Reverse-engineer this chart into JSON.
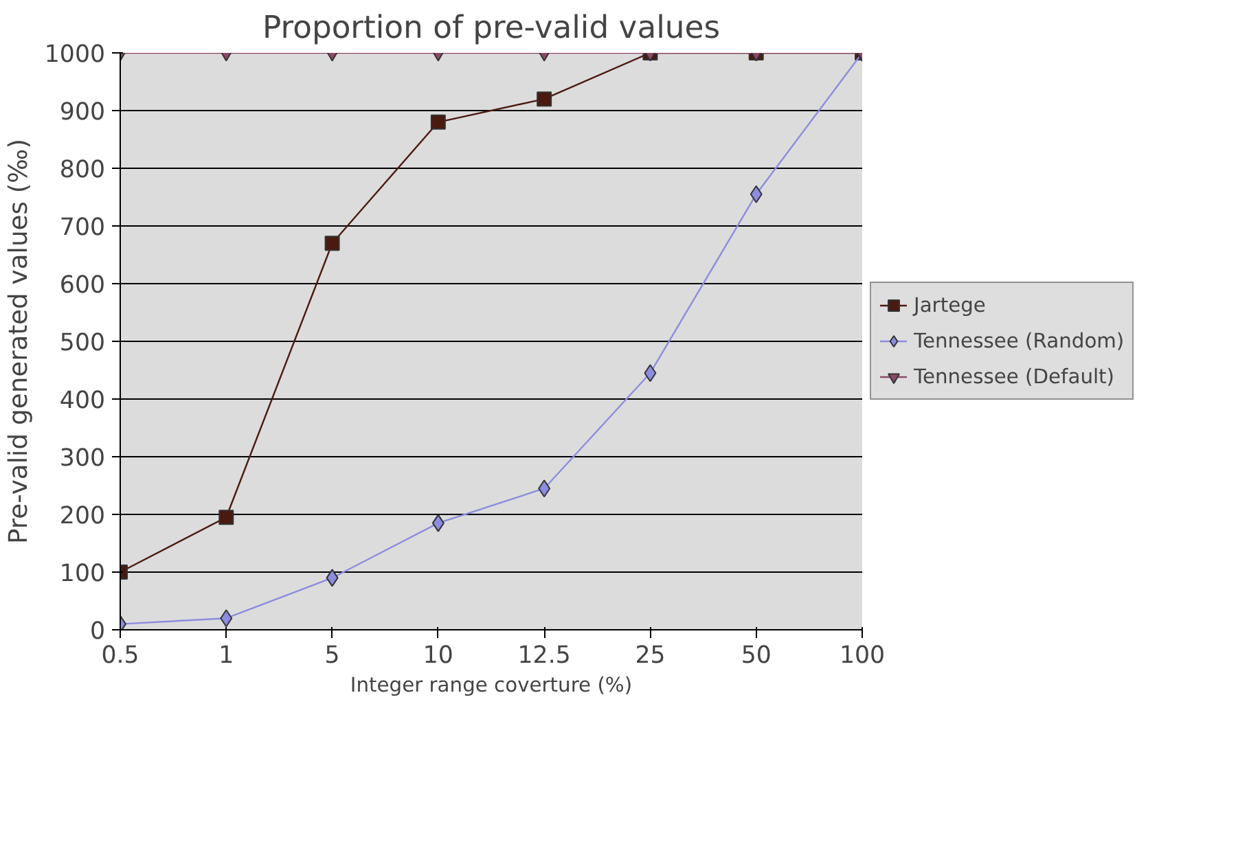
{
  "chart_data": {
    "type": "line",
    "title": "Proportion of pre-valid values",
    "xlabel": "Integer range coverture (%)",
    "ylabel": "Pre-valid generated values (‰)",
    "categories": [
      "0.5",
      "1",
      "5",
      "10",
      "12.5",
      "25",
      "50",
      "100"
    ],
    "series": [
      {
        "name": "Jartege",
        "color": "#4a1a10",
        "marker": "square",
        "values": [
          100,
          195,
          670,
          880,
          920,
          1000,
          1000,
          1000
        ]
      },
      {
        "name": "Tennessee (Random)",
        "color": "#8c8ce0",
        "marker": "diamond",
        "values": [
          10,
          20,
          90,
          185,
          245,
          445,
          755,
          1000
        ]
      },
      {
        "name": "Tennessee (Default)",
        "color": "#8c4a6a",
        "marker": "triangle",
        "values": [
          1000,
          1000,
          1000,
          1000,
          1000,
          1000,
          1000,
          1000
        ]
      }
    ],
    "ylim": [
      0,
      1000
    ],
    "yticks": [
      0,
      100,
      200,
      300,
      400,
      500,
      600,
      700,
      800,
      900,
      1000
    ],
    "grid": "y",
    "legend": "right",
    "line_style": "solid"
  }
}
